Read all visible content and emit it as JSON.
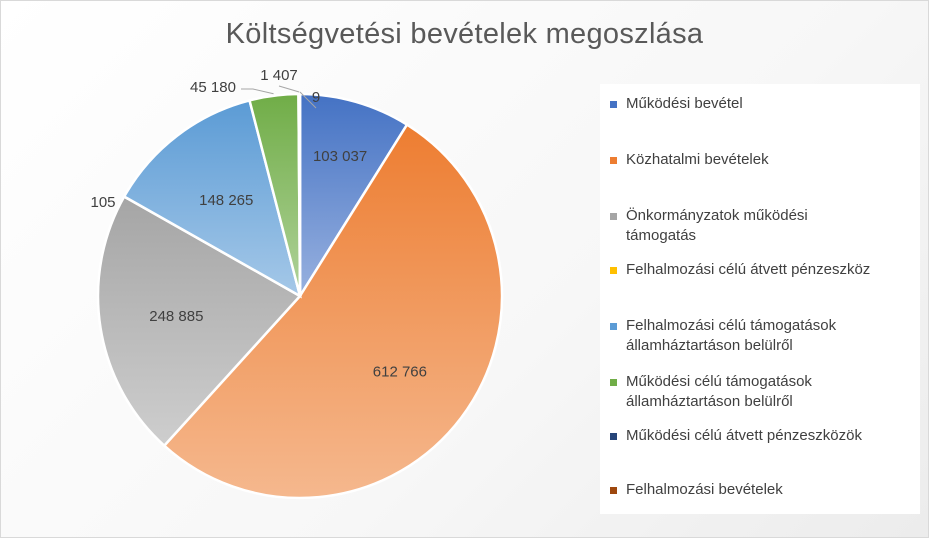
{
  "chart_data": {
    "type": "pie",
    "title": "Költségvetési bevételek megoszlása",
    "legend_position": "right",
    "slices": [
      {
        "label": "Működési bevétel",
        "value": 103037,
        "display": "103 037",
        "color": "#4472c4"
      },
      {
        "label": "Közhatalmi bevételek",
        "value": 612766,
        "display": "612 766",
        "color": "#ed7d31"
      },
      {
        "label": "Önkormányzatok működési támogatás",
        "value": 248885,
        "display": "248 885",
        "color": "#a5a5a5"
      },
      {
        "label": "Felhalmozási célú átvett pénzeszköz",
        "value": 105,
        "display": "105",
        "color": "#ffc000"
      },
      {
        "label": "Felhalmozási célú támogatások államháztartáson belülről",
        "value": 148265,
        "display": "148 265",
        "color": "#5b9bd5"
      },
      {
        "label": "Működési célú támogatások államháztartáson belülről",
        "value": 45180,
        "display": "45 180",
        "color": "#70ad47"
      },
      {
        "label": "Működési célú átvett pénzeszközök",
        "value": 1407,
        "display": "1 407",
        "color": "#264478"
      },
      {
        "label": "Felhalmozási bevételek",
        "value": 9,
        "display": "9",
        "color": "#9e480e"
      }
    ]
  }
}
